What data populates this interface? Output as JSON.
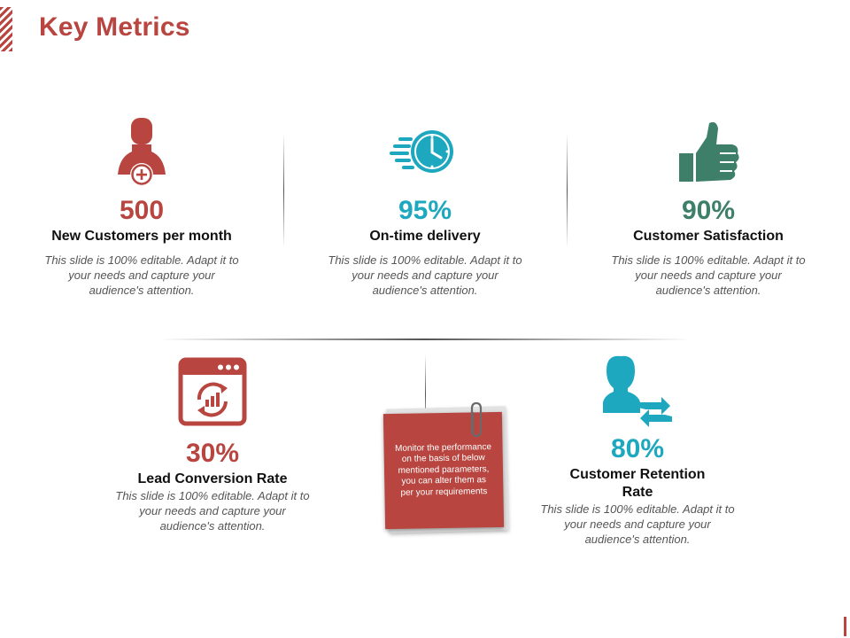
{
  "title": "Key Metrics",
  "colors": {
    "red": "#b8453f",
    "teal": "#1da8bf",
    "green": "#3e7f6a"
  },
  "metrics": [
    {
      "value": "500",
      "label": "New Customers per month",
      "description": "This slide is 100% editable. Adapt it to your needs and capture your audience's attention.",
      "icon": "user-add-icon"
    },
    {
      "value": "95%",
      "label": "On-time delivery",
      "description": "This slide is 100% editable. Adapt it to your needs and capture your audience's attention.",
      "icon": "fast-clock-icon"
    },
    {
      "value": "90%",
      "label": "Customer Satisfaction",
      "description": "This slide is 100% editable. Adapt it to your needs and capture your audience's attention.",
      "icon": "thumbs-up-icon"
    },
    {
      "value": "30%",
      "label": "Lead Conversion Rate",
      "description": "This slide is 100% editable. Adapt it to your needs and capture your audience's attention.",
      "icon": "browser-chart-icon"
    },
    {
      "value": "80%",
      "label": "Customer Retention Rate",
      "description": "This slide is 100% editable. Adapt it to your needs and capture your audience's attention.",
      "icon": "user-sync-icon"
    }
  ],
  "note": {
    "text": "Monitor the performance on the basis of below mentioned parameters, you can alter them as per your requirements",
    "icon": "paperclip-icon"
  }
}
